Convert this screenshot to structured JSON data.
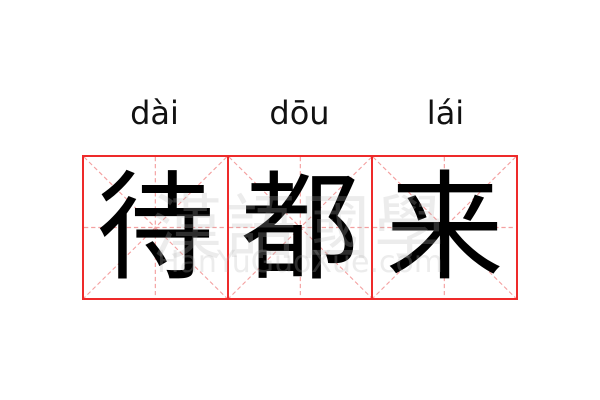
{
  "colors": {
    "border": "#ee2a2a",
    "guide": "#f4a0a0",
    "text": "#000000"
  },
  "characters": [
    {
      "pinyin": "dài",
      "hanzi": "待"
    },
    {
      "pinyin": "dōu",
      "hanzi": "都"
    },
    {
      "pinyin": "lái",
      "hanzi": "来"
    }
  ],
  "watermark": {
    "logo": "漢語國學",
    "site": "HanYuGuoXue.com"
  }
}
